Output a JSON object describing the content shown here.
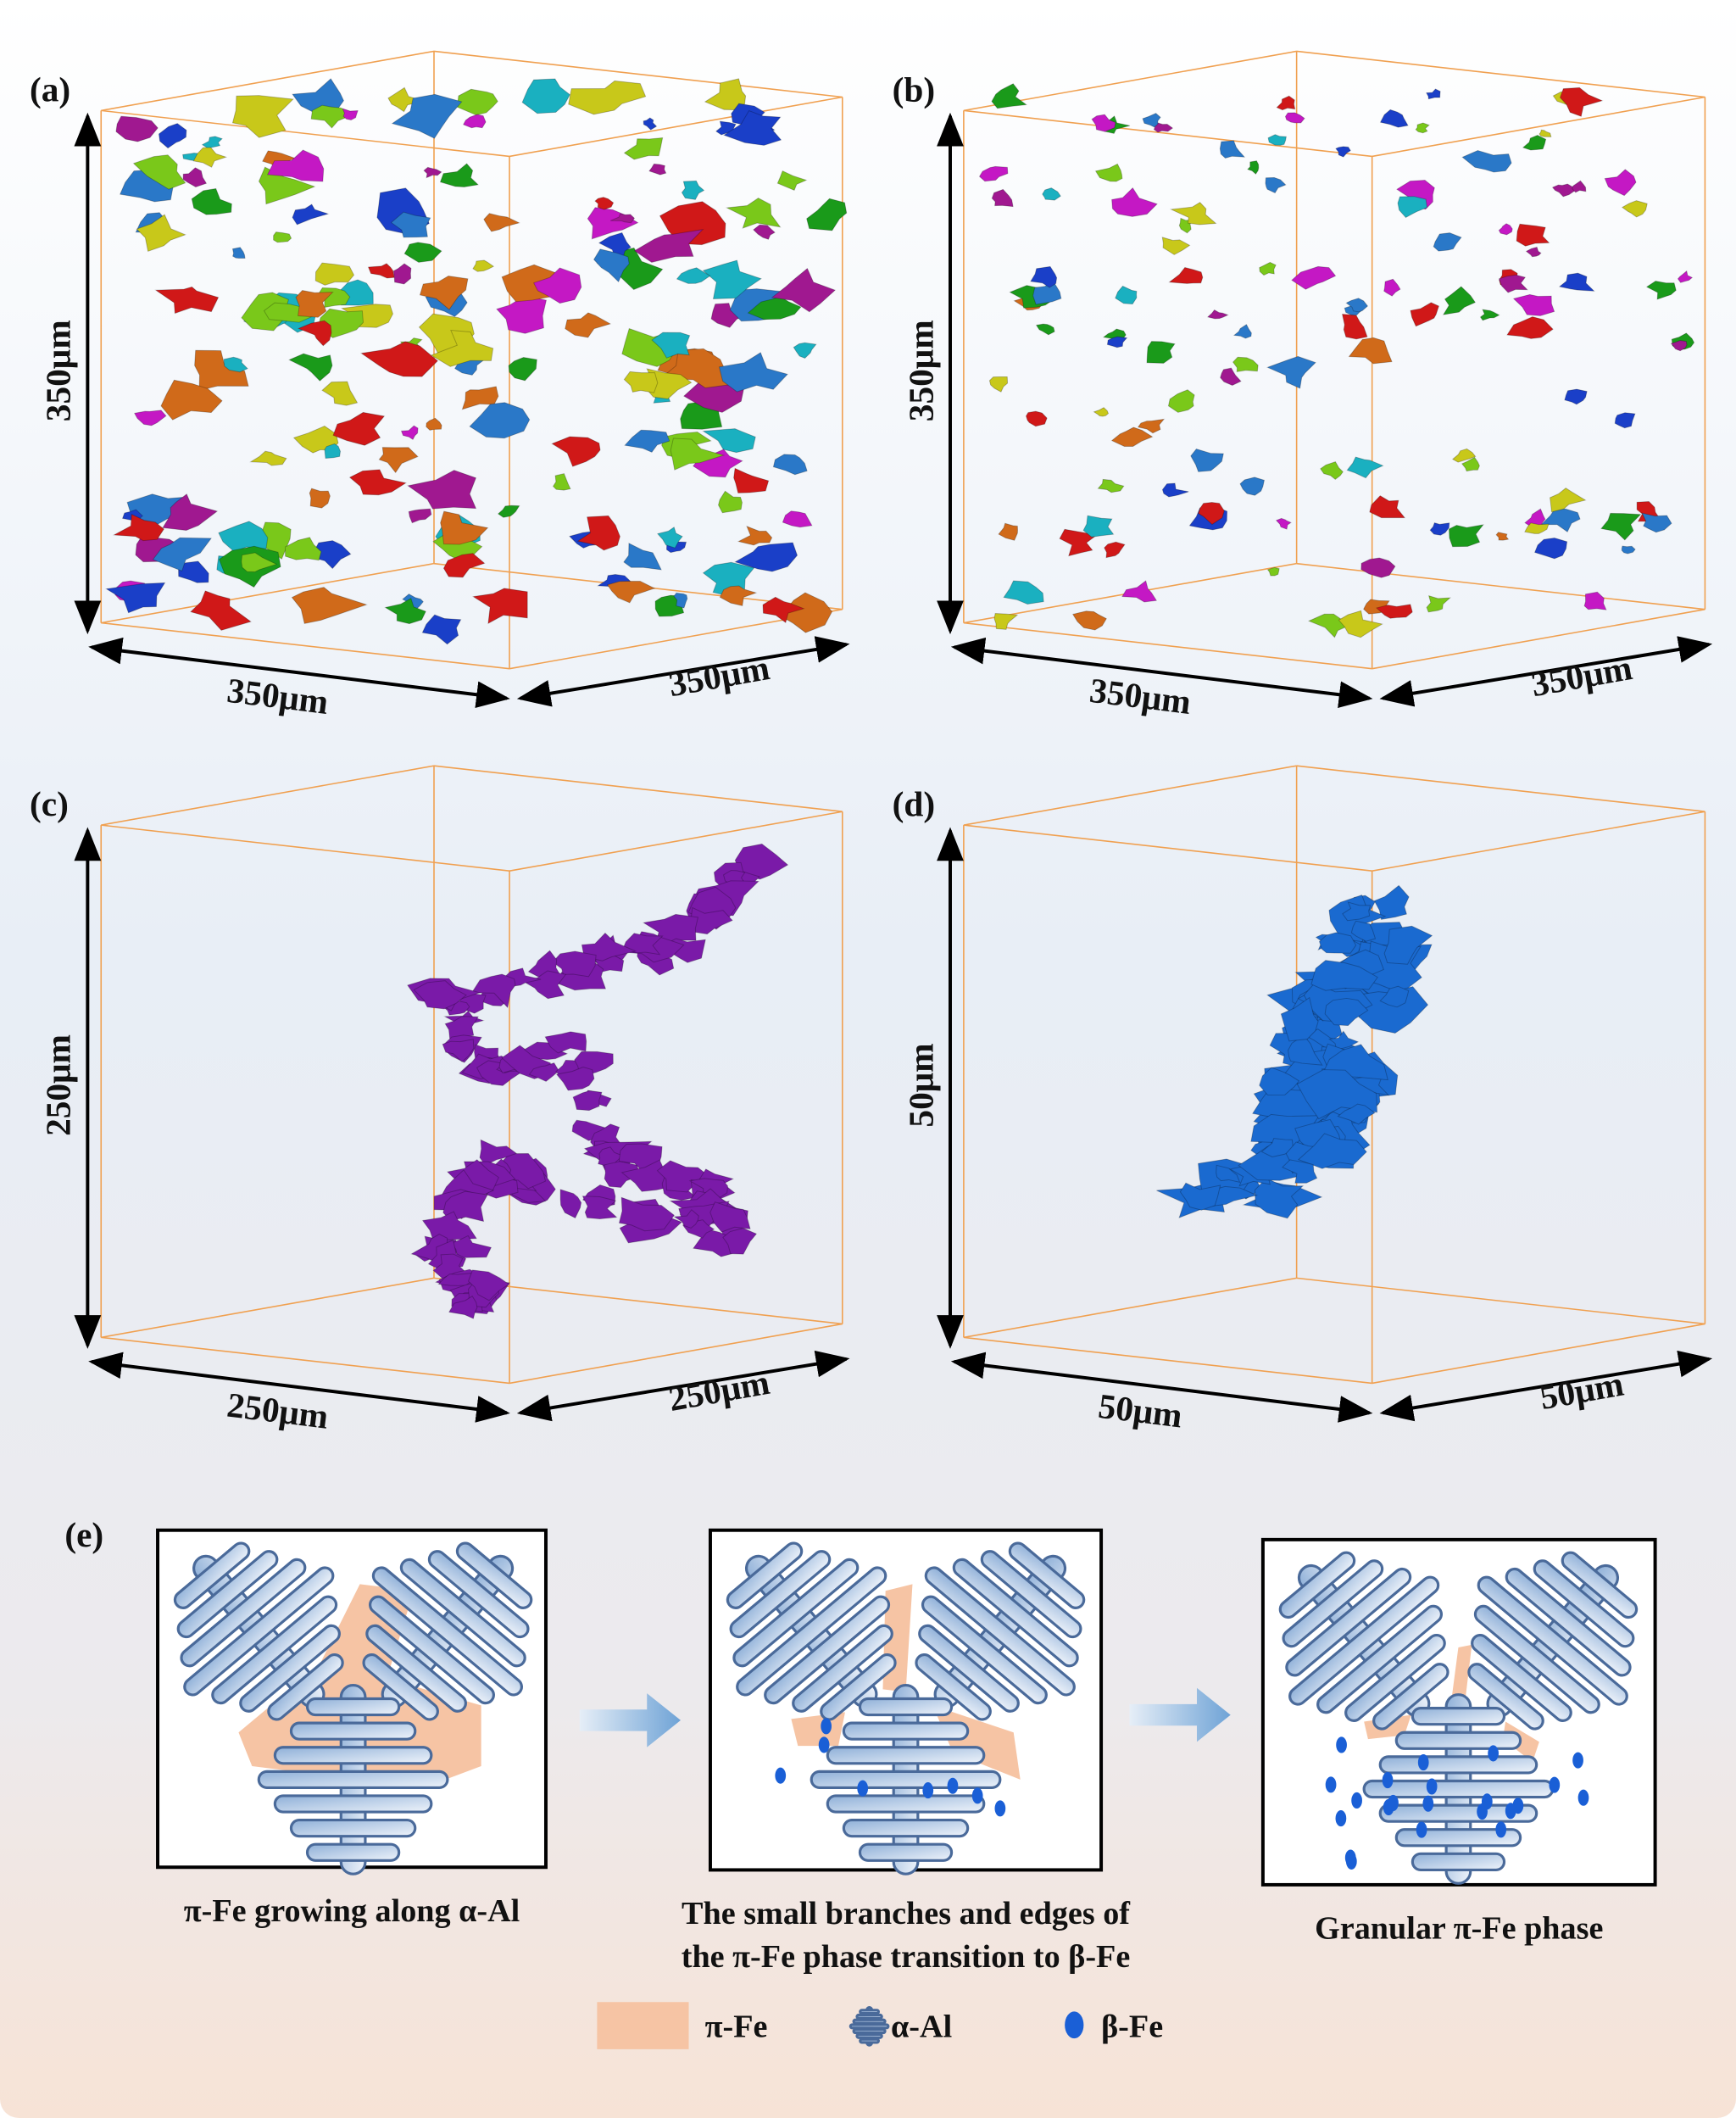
{
  "panels": [
    {
      "label": "(a)",
      "height": "350μm",
      "width": "350μm",
      "depth": "350μm"
    },
    {
      "label": "(b)",
      "height": "350μm",
      "width": "350μm",
      "depth": "350μm"
    },
    {
      "label": "(c)",
      "height": "250μm",
      "width": "250μm",
      "depth": "250μm"
    },
    {
      "label": "(d)",
      "height": "50μm",
      "width": "50μm",
      "depth": "50μm"
    }
  ],
  "schematic": {
    "label": "(e)",
    "captions": [
      [
        "π-Fe growing along α-Al"
      ],
      [
        "The small branches and edges of",
        "the π-Fe phase transition to β-Fe"
      ],
      [
        "Granular π-Fe phase"
      ]
    ],
    "legend": [
      "π-Fe",
      "α-Al",
      "β-Fe"
    ]
  }
}
